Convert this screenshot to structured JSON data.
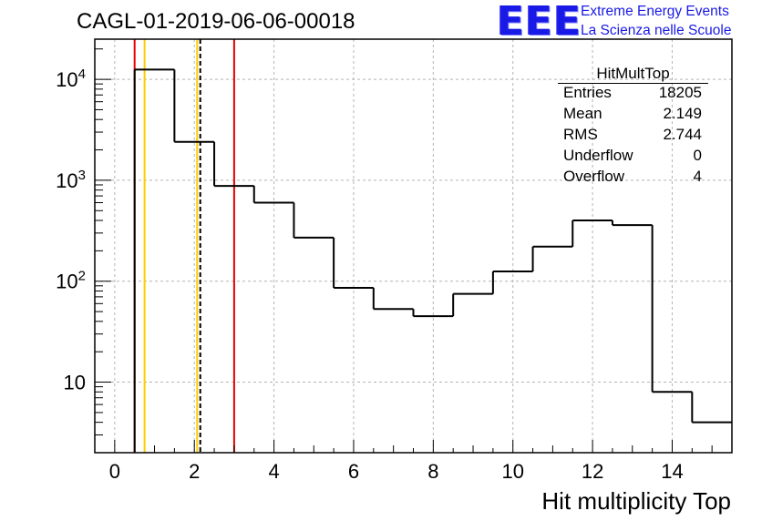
{
  "title": "CAGL-01-2019-06-06-00018",
  "logo": {
    "text": "EEE",
    "line1": "Extreme Energy Events",
    "line2": "La Scienza nelle Scuole",
    "color": "#1a1ae6"
  },
  "stats": {
    "name": "HitMultTop",
    "rows": [
      {
        "label": "Entries",
        "value": "18205"
      },
      {
        "label": "Mean",
        "value": "2.149"
      },
      {
        "label": "RMS",
        "value": "2.744"
      },
      {
        "label": "Underflow",
        "value": "0"
      },
      {
        "label": "Overflow",
        "value": "4"
      }
    ]
  },
  "chart_data": {
    "type": "histogram",
    "title": "CAGL-01-2019-06-06-00018",
    "xlabel": "Hit multiplicity Top",
    "ylabel": "",
    "xlim": [
      -0.5,
      15.5
    ],
    "ylim": [
      2,
      25000
    ],
    "yscale": "log",
    "grid": true,
    "bin_edges": [
      0.5,
      1.5,
      2.5,
      3.5,
      4.5,
      5.5,
      6.5,
      7.5,
      8.5,
      9.5,
      10.5,
      11.5,
      12.5,
      13.5,
      14.5,
      15.5
    ],
    "values": [
      12500,
      2400,
      880,
      600,
      270,
      86,
      53,
      45,
      75,
      125,
      220,
      400,
      360,
      8,
      4
    ],
    "xticks": [
      0,
      2,
      4,
      6,
      8,
      10,
      12,
      14
    ],
    "xtick_labels": [
      "0",
      "2",
      "4",
      "6",
      "8",
      "10",
      "12",
      "14"
    ],
    "yticks": [
      10,
      100,
      1000,
      10000
    ],
    "ytick_labels": [
      {
        "base": "10",
        "exp": ""
      },
      {
        "base": "10",
        "exp": "2"
      },
      {
        "base": "10",
        "exp": "3"
      },
      {
        "base": "10",
        "exp": "4"
      }
    ],
    "vertical_lines": [
      {
        "x": 0.75,
        "color": "#ffcc00",
        "style": "solid"
      },
      {
        "x": 2.07,
        "color": "#ffcc00",
        "style": "solid"
      },
      {
        "x": 2.149,
        "color": "#000000",
        "style": "dashed"
      },
      {
        "x": 0.5,
        "color": "#e60000",
        "style": "solid"
      },
      {
        "x": 3.0,
        "color": "#e60000",
        "style": "solid"
      }
    ],
    "colors": {
      "histogram": "#000000",
      "grid": "#b4b4b4"
    }
  }
}
